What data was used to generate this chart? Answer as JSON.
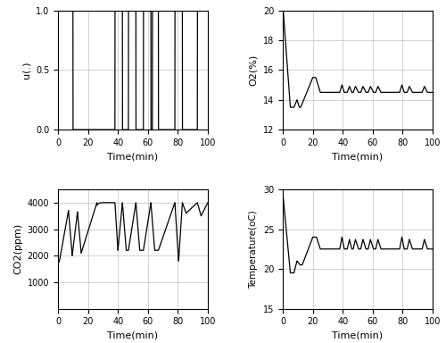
{
  "o2_ylim": [
    12,
    20
  ],
  "o2_yticks": [
    12,
    14,
    16,
    18,
    20
  ],
  "co2_ylim": [
    0,
    4500
  ],
  "co2_yticks": [
    1000,
    2000,
    3000,
    4000
  ],
  "temp_ylim": [
    15,
    30
  ],
  "temp_yticks": [
    15,
    20,
    25,
    30
  ],
  "u_ylim": [
    0,
    1
  ],
  "u_yticks": [
    0,
    0.5,
    1
  ],
  "xlim": [
    0,
    100
  ],
  "xticks": [
    0,
    20,
    40,
    60,
    80,
    100
  ],
  "xlabel": "Time(min)",
  "u_ylabel": "u(.)",
  "o2_ylabel": "O2(%)",
  "co2_ylabel": "CO2(ppm)",
  "temp_ylabel": "Temperature(oC)",
  "linecolor": "#000000",
  "gridcolor": "#c0c0c0",
  "bg_color": "#ffffff"
}
